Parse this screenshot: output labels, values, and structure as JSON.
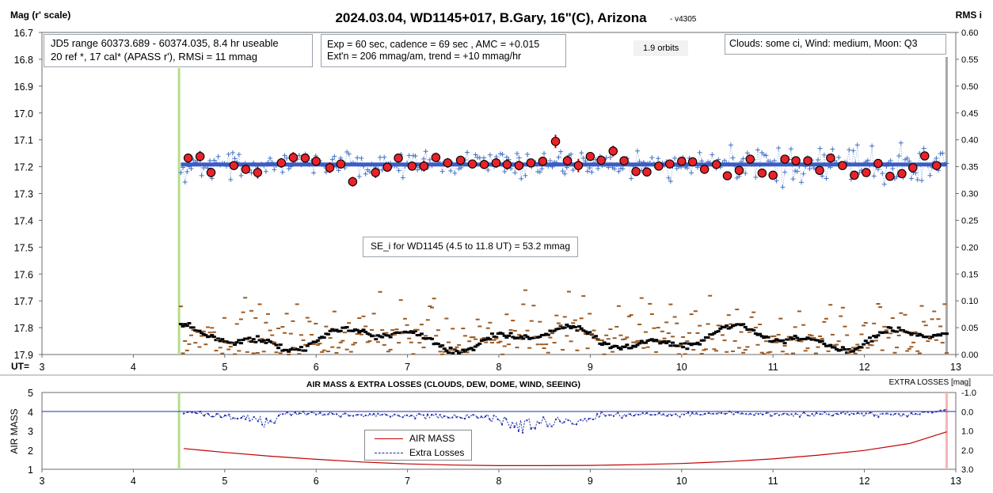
{
  "title": "2024.03.04, WD1145+017, B.Gary, 16\"(C), Arizona",
  "version": "- v4305",
  "chart_data": [
    {
      "type": "scatter",
      "name": "main",
      "ylabel_left": "Mag (r' scale)",
      "ylabel_right": "RMS i",
      "xlabel": "UT=",
      "xlim": [
        3,
        13
      ],
      "ylim_left": [
        16.7,
        17.9
      ],
      "ylim_right": [
        0.0,
        0.6
      ],
      "x_ticks": [
        "3",
        "4",
        "5",
        "6",
        "7",
        "8",
        "9",
        "10",
        "11",
        "12",
        "13"
      ],
      "y_ticks_left": [
        "16.7",
        "16.8",
        "16.9",
        "17.0",
        "17.1",
        "17.2",
        "17.3",
        "17.4",
        "17.5",
        "17.6",
        "17.7",
        "17.8",
        "17.9"
      ],
      "y_ticks_right": [
        "0.60",
        "0.55",
        "0.50",
        "0.45",
        "0.40",
        "0.35",
        "0.30",
        "0.25",
        "0.20",
        "0.15",
        "0.10",
        "0.05",
        "0.00"
      ],
      "vertical_markers_ut": [
        4.5,
        12.9
      ],
      "model_level_mag": 17.192,
      "binned_x": [
        4.6,
        4.73,
        4.85,
        5.1,
        5.23,
        5.36,
        5.62,
        5.75,
        5.88,
        6.0,
        6.15,
        6.27,
        6.4,
        6.65,
        6.78,
        6.9,
        7.05,
        7.18,
        7.31,
        7.44,
        7.58,
        7.71,
        7.84,
        7.97,
        8.09,
        8.22,
        8.35,
        8.48,
        8.62,
        8.75,
        8.87,
        9.0,
        9.12,
        9.25,
        9.37,
        9.5,
        9.62,
        9.75,
        9.87,
        10.0,
        10.12,
        10.25,
        10.38,
        10.5,
        10.63,
        10.75,
        10.88,
        11.0,
        11.13,
        11.25,
        11.38,
        11.51,
        11.63,
        11.76,
        11.89,
        12.02,
        12.15,
        12.28,
        12.41,
        12.53,
        12.66,
        12.79
      ],
      "binned_y": [
        17.168,
        17.162,
        17.222,
        17.196,
        17.21,
        17.222,
        17.186,
        17.166,
        17.168,
        17.18,
        17.204,
        17.19,
        17.256,
        17.222,
        17.202,
        17.168,
        17.198,
        17.198,
        17.166,
        17.186,
        17.176,
        17.19,
        17.192,
        17.186,
        17.192,
        17.196,
        17.186,
        17.18,
        17.106,
        17.178,
        17.196,
        17.162,
        17.176,
        17.142,
        17.178,
        17.218,
        17.22,
        17.198,
        17.19,
        17.18,
        17.182,
        17.21,
        17.192,
        17.234,
        17.214,
        17.172,
        17.224,
        17.232,
        17.172,
        17.178,
        17.178,
        17.214,
        17.168,
        17.196,
        17.232,
        17.222,
        17.188,
        17.236,
        17.226,
        17.204,
        17.16,
        17.196
      ],
      "binned_err": [
        0.015,
        0.02,
        0.018,
        0.01,
        0.015,
        0.022,
        0.018,
        0.02,
        0.015,
        0.018,
        0.02,
        0.015,
        0.018,
        0.02,
        0.015,
        0.012,
        0.015,
        0.02,
        0.015,
        0.018,
        0.015,
        0.012,
        0.015,
        0.018,
        0.02,
        0.018,
        0.015,
        0.015,
        0.025,
        0.018,
        0.025,
        0.015,
        0.018,
        0.02,
        0.015,
        0.012,
        0.015,
        0.012,
        0.012,
        0.012,
        0.012,
        0.015,
        0.012,
        0.012,
        0.015,
        0.012,
        0.012,
        0.012,
        0.012,
        0.012,
        0.015,
        0.012,
        0.012,
        0.012,
        0.012,
        0.015,
        0.012,
        0.012,
        0.012,
        0.015,
        0.015,
        0.012
      ],
      "raw_range_ut": [
        4.52,
        12.9
      ],
      "raw_count": 370,
      "raw_scatter_mag": 0.053
    },
    {
      "type": "line",
      "name": "airmass",
      "title": "AIR MASS & EXTRA LOSSES (CLOUDS, DEW, DOME, WIND, SEEING)",
      "ylabel_left": "AIR MASS",
      "ylabel_right": "EXTRA LOSSES [mag]",
      "xlim": [
        3,
        13
      ],
      "ylim_left": [
        1,
        5
      ],
      "ylim_right": [
        -1.0,
        3.0
      ],
      "x_ticks": [
        "3",
        "4",
        "5",
        "6",
        "7",
        "8",
        "9",
        "10",
        "11",
        "12",
        "13"
      ],
      "y_ticks_left": [
        "5",
        "4",
        "3",
        "2",
        "1"
      ],
      "y_ticks_right": [
        "-1.0",
        "0.0",
        "1.0",
        "2.0",
        "3.0"
      ],
      "airmass_x": [
        4.55,
        5.0,
        5.5,
        6.0,
        6.5,
        7.0,
        7.5,
        8.0,
        8.5,
        9.0,
        9.5,
        10.0,
        10.5,
        11.0,
        11.5,
        12.0,
        12.5,
        12.9
      ],
      "airmass_y": [
        2.08,
        1.88,
        1.68,
        1.52,
        1.38,
        1.28,
        1.22,
        1.19,
        1.19,
        1.2,
        1.24,
        1.3,
        1.4,
        1.54,
        1.74,
        1.98,
        2.35,
        2.95
      ],
      "extra_losses_profile_ut": [
        4.55,
        5.3,
        5.45,
        5.7,
        7.9,
        8.2,
        8.5,
        8.85,
        9.1,
        10.5,
        11.5,
        12.5,
        12.9
      ],
      "extra_losses_profile_mag": [
        0.05,
        0.35,
        0.6,
        0.1,
        0.3,
        0.75,
        0.55,
        0.5,
        0.2,
        0.1,
        0.15,
        0.15,
        -0.05
      ],
      "legend": [
        "AIR MASS",
        "Extra Losses"
      ],
      "colors": {
        "airmass": "#c00000",
        "extra": "#1f2fa8"
      }
    }
  ],
  "notes": {
    "jd_line1": "JD5 range 60373.689 - 60374.035, 8.4 hr useable",
    "jd_line2": "20 ref *, 17 cal*  (APASS r'), RMSi = 11 mmag",
    "exp_line1": "Exp = 60 sec, cadence = 69 sec , AMC = +0.015",
    "exp_line2": "Ext'n = 206 mmag/am, trend = +10 mmag/hr",
    "orbits": "1.9 orbits",
    "conditions": "Clouds: some ci, Wind:  medium, Moon:  Q3",
    "se_label": "SE_i for WD1145 (4.5 to 11.8 UT) = 53.2 mmag"
  },
  "colors": {
    "raw": "#4472c4",
    "binned_fill": "#e8232a",
    "model": "#3b5cc4",
    "rms_black": "#000000",
    "rms_brown": "#9c5a22",
    "start_marker": "#b6dd8b",
    "end_marker": "#a8a8a8",
    "end_marker_bottom": "#f4b6b6"
  }
}
